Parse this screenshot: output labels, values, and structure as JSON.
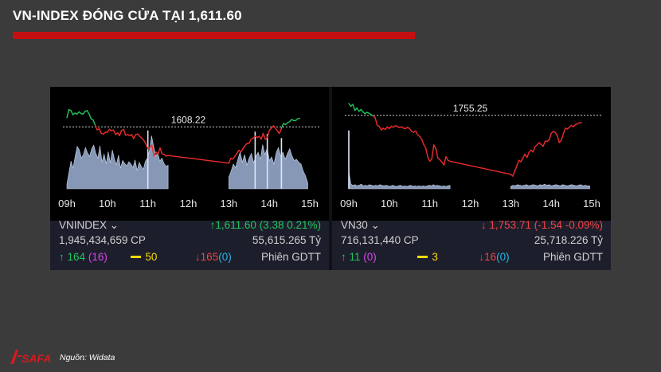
{
  "title": "VN-INDEX ĐÓNG CỬA TẠI 1,611.60",
  "source": "Nguồn: Widata",
  "logo_text": "SAFA",
  "chart_data": [
    {
      "type": "line",
      "index_name": "VNINDEX",
      "reference": 1608.22,
      "reference_label": "1608.22",
      "x_ticks": [
        "09h",
        "10h",
        "11h",
        "12h",
        "13h",
        "14h",
        "15h"
      ],
      "close": "1,611.60 (3.38 0.21%)",
      "volume": "1,945,434,659 CP",
      "value": "55,615.265 Tỷ",
      "up": "164",
      "up_ceiling": "(16)",
      "unchanged": "50",
      "down": "165",
      "down_floor": "(0)",
      "session": "Phiên GDTT",
      "direction": "up",
      "ylim": [
        1598,
        1614
      ],
      "series": [
        {
          "x": [
            9.0,
            9.05,
            9.1,
            9.15,
            9.2,
            9.25,
            9.3,
            9.35,
            9.4,
            9.45,
            9.5,
            9.55,
            9.6,
            9.65,
            9.7,
            9.75,
            9.8,
            9.85,
            9.9,
            9.95,
            10.0,
            10.05,
            10.1,
            10.15,
            10.2,
            10.25,
            10.3,
            10.35,
            10.4,
            10.45,
            10.5,
            10.55,
            10.6,
            10.65,
            10.7,
            10.75,
            10.8,
            10.85,
            10.9,
            10.95,
            11.0,
            11.05,
            11.1,
            11.15,
            11.2,
            11.25,
            11.3,
            11.35,
            11.4,
            11.45,
            11.5,
            13.0,
            13.05,
            13.1,
            13.15,
            13.2,
            13.25,
            13.3,
            13.35,
            13.4,
            13.45,
            13.5,
            13.55,
            13.6,
            13.65,
            13.7,
            13.75,
            13.8,
            13.85,
            13.9,
            13.95,
            14.0,
            14.05,
            14.1,
            14.15,
            14.2,
            14.25,
            14.3,
            14.35,
            14.4,
            14.45,
            14.5,
            14.55,
            14.6,
            14.65,
            14.7,
            14.75
          ],
          "y": [
            1609.8,
            1611.2,
            1611.0,
            1610.3,
            1610.6,
            1610.4,
            1610.8,
            1610.5,
            1610.4,
            1610.9,
            1611.0,
            1610.4,
            1609.6,
            1609.4,
            1608.5,
            1607.7,
            1607.9,
            1607.1,
            1607.0,
            1607.3,
            1607.3,
            1607.8,
            1607.5,
            1607.7,
            1606.9,
            1607.2,
            1606.7,
            1607.6,
            1607.8,
            1606.8,
            1606.9,
            1606.7,
            1606.9,
            1606.2,
            1606.9,
            1607.0,
            1606.6,
            1606.3,
            1605.9,
            1605.3,
            1604.5,
            1604.7,
            1605.1,
            1603.2,
            1603.9,
            1603.5,
            1604.6,
            1603.6,
            1603.5,
            1603.2,
            1603.3,
            1602.0,
            1602.8,
            1602.7,
            1603.2,
            1603.7,
            1604.2,
            1603.9,
            1604.5,
            1605.0,
            1605.4,
            1605.4,
            1606.1,
            1606.3,
            1606.6,
            1606.4,
            1606.6,
            1606.1,
            1607.1,
            1606.1,
            1606.4,
            1607.6,
            1608.0,
            1608.4,
            1608.0,
            1607.5,
            1607.1,
            1608.0,
            1608.8,
            1608.6,
            1608.9,
            1609.1,
            1609.5,
            1609.3,
            1609.3,
            1609.6,
            1609.7
          ]
        }
      ],
      "volume_bars": [
        0.08,
        0.28,
        0.47,
        0.35,
        0.55,
        0.72,
        0.66,
        0.52,
        0.58,
        0.7,
        0.61,
        0.55,
        0.68,
        0.74,
        0.6,
        0.52,
        0.73,
        0.45,
        0.59,
        0.42,
        0.63,
        0.44,
        0.66,
        0.5,
        0.41,
        0.57,
        0.35,
        0.48,
        0.43,
        0.39,
        0.46,
        0.42,
        0.36,
        0.49,
        0.31,
        0.45,
        0.38,
        0.33,
        0.47,
        0.52,
        0.65,
        0.9,
        0.72,
        0.55,
        0.61,
        0.47,
        0.52,
        0.43,
        0.38,
        0.4,
        0.2,
        0.3,
        0.42,
        0.36,
        0.5,
        0.62,
        0.45,
        0.58,
        0.4,
        0.52,
        0.6,
        0.44,
        0.55,
        0.62,
        0.5,
        0.75,
        0.58,
        0.69,
        0.48,
        0.54,
        0.42,
        0.61,
        0.7,
        0.55,
        0.62,
        0.5,
        0.6,
        0.68,
        0.56,
        0.48,
        0.5,
        0.45,
        0.42,
        0.3,
        0.22,
        0.1
      ],
      "volume_spikes": [
        [
          11.0,
          0.99
        ],
        [
          13.65,
          0.97
        ],
        [
          13.95,
          0.93
        ],
        [
          14.3,
          0.86
        ]
      ]
    },
    {
      "type": "line",
      "index_name": "VN30",
      "reference": 1755.25,
      "reference_label": "1755.25",
      "x_ticks": [
        "09h",
        "10h",
        "11h",
        "12h",
        "13h",
        "14h",
        "15h"
      ],
      "close": "1,753.71 (-1.54 -0.09%)",
      "volume": "716,131,440 CP",
      "value": "25,718.226 Tỷ",
      "up": "11",
      "up_ceiling": "(0)",
      "unchanged": "3",
      "down": "16",
      "down_floor": "(0)",
      "session": "Phiên GDTT",
      "direction": "down",
      "ylim": [
        1740,
        1760
      ],
      "series": [
        {
          "x": [
            9.0,
            9.05,
            9.1,
            9.15,
            9.2,
            9.25,
            9.3,
            9.35,
            9.4,
            9.45,
            9.5,
            9.55,
            9.6,
            9.65,
            9.7,
            9.75,
            9.8,
            9.85,
            9.9,
            9.95,
            10.0,
            10.05,
            10.1,
            10.15,
            10.2,
            10.25,
            10.3,
            10.35,
            10.4,
            10.45,
            10.5,
            10.55,
            10.6,
            10.65,
            10.7,
            10.75,
            10.8,
            10.85,
            10.9,
            10.95,
            11.0,
            11.05,
            11.1,
            11.15,
            11.2,
            11.25,
            11.3,
            11.35,
            11.4,
            11.45,
            11.5,
            13.0,
            13.05,
            13.1,
            13.15,
            13.2,
            13.25,
            13.3,
            13.35,
            13.4,
            13.45,
            13.5,
            13.55,
            13.6,
            13.65,
            13.7,
            13.75,
            13.8,
            13.85,
            13.9,
            13.95,
            14.0,
            14.05,
            14.1,
            14.15,
            14.2,
            14.25,
            14.3,
            14.35,
            14.4,
            14.45,
            14.5,
            14.55,
            14.6,
            14.65,
            14.7,
            14.75
          ],
          "y": [
            1757.8,
            1757.2,
            1757.6,
            1756.3,
            1756.8,
            1756.1,
            1756.5,
            1756.0,
            1755.6,
            1755.9,
            1755.7,
            1755.4,
            1755.1,
            1754.8,
            1753.1,
            1752.9,
            1752.1,
            1752.5,
            1752.2,
            1752.8,
            1752.4,
            1752.9,
            1752.7,
            1753.0,
            1752.9,
            1752.6,
            1752.8,
            1752.5,
            1752.4,
            1752.7,
            1752.4,
            1751.8,
            1751.6,
            1751.9,
            1751.1,
            1750.7,
            1750.1,
            1749.0,
            1748.2,
            1746.3,
            1745.4,
            1745.9,
            1748.9,
            1748.1,
            1746.1,
            1745.7,
            1745.2,
            1744.6,
            1746.4,
            1745.6,
            1745.4,
            1742.6,
            1742.2,
            1743.3,
            1744.4,
            1745.6,
            1745.3,
            1746.1,
            1746.9,
            1746.2,
            1747.3,
            1747.8,
            1747.4,
            1748.5,
            1748.9,
            1749.4,
            1749.0,
            1748.6,
            1749.7,
            1749.7,
            1750.0,
            1751.4,
            1751.8,
            1751.6,
            1750.9,
            1749.4,
            1749.9,
            1751.3,
            1752.5,
            1752.3,
            1752.7,
            1753.1,
            1752.8,
            1753.3,
            1753.4,
            1753.7,
            1753.7
          ]
        }
      ],
      "volume_bars": [
        0.3,
        0.08,
        0.06,
        0.07,
        0.05,
        0.06,
        0.08,
        0.05,
        0.06,
        0.05,
        0.07,
        0.06,
        0.05,
        0.06,
        0.05,
        0.07,
        0.06,
        0.05,
        0.06,
        0.05,
        0.04,
        0.06,
        0.05,
        0.04,
        0.05,
        0.06,
        0.04,
        0.05,
        0.04,
        0.05,
        0.06,
        0.04,
        0.05,
        0.04,
        0.05,
        0.04,
        0.05,
        0.04,
        0.05,
        0.06,
        0.05,
        0.07,
        0.05,
        0.06,
        0.05,
        0.04,
        0.05,
        0.04,
        0.05,
        0.06,
        0.04,
        0.06,
        0.05,
        0.07,
        0.06,
        0.05,
        0.06,
        0.07,
        0.05,
        0.06,
        0.07,
        0.06,
        0.05,
        0.07,
        0.06,
        0.08,
        0.06,
        0.07,
        0.05,
        0.06,
        0.07,
        0.06,
        0.05,
        0.07,
        0.06,
        0.05,
        0.06,
        0.07,
        0.06,
        0.05,
        0.06,
        0.07,
        0.05,
        0.06,
        0.05,
        0.05
      ],
      "volume_spikes": [
        [
          9.0,
          0.99
        ]
      ]
    }
  ]
}
